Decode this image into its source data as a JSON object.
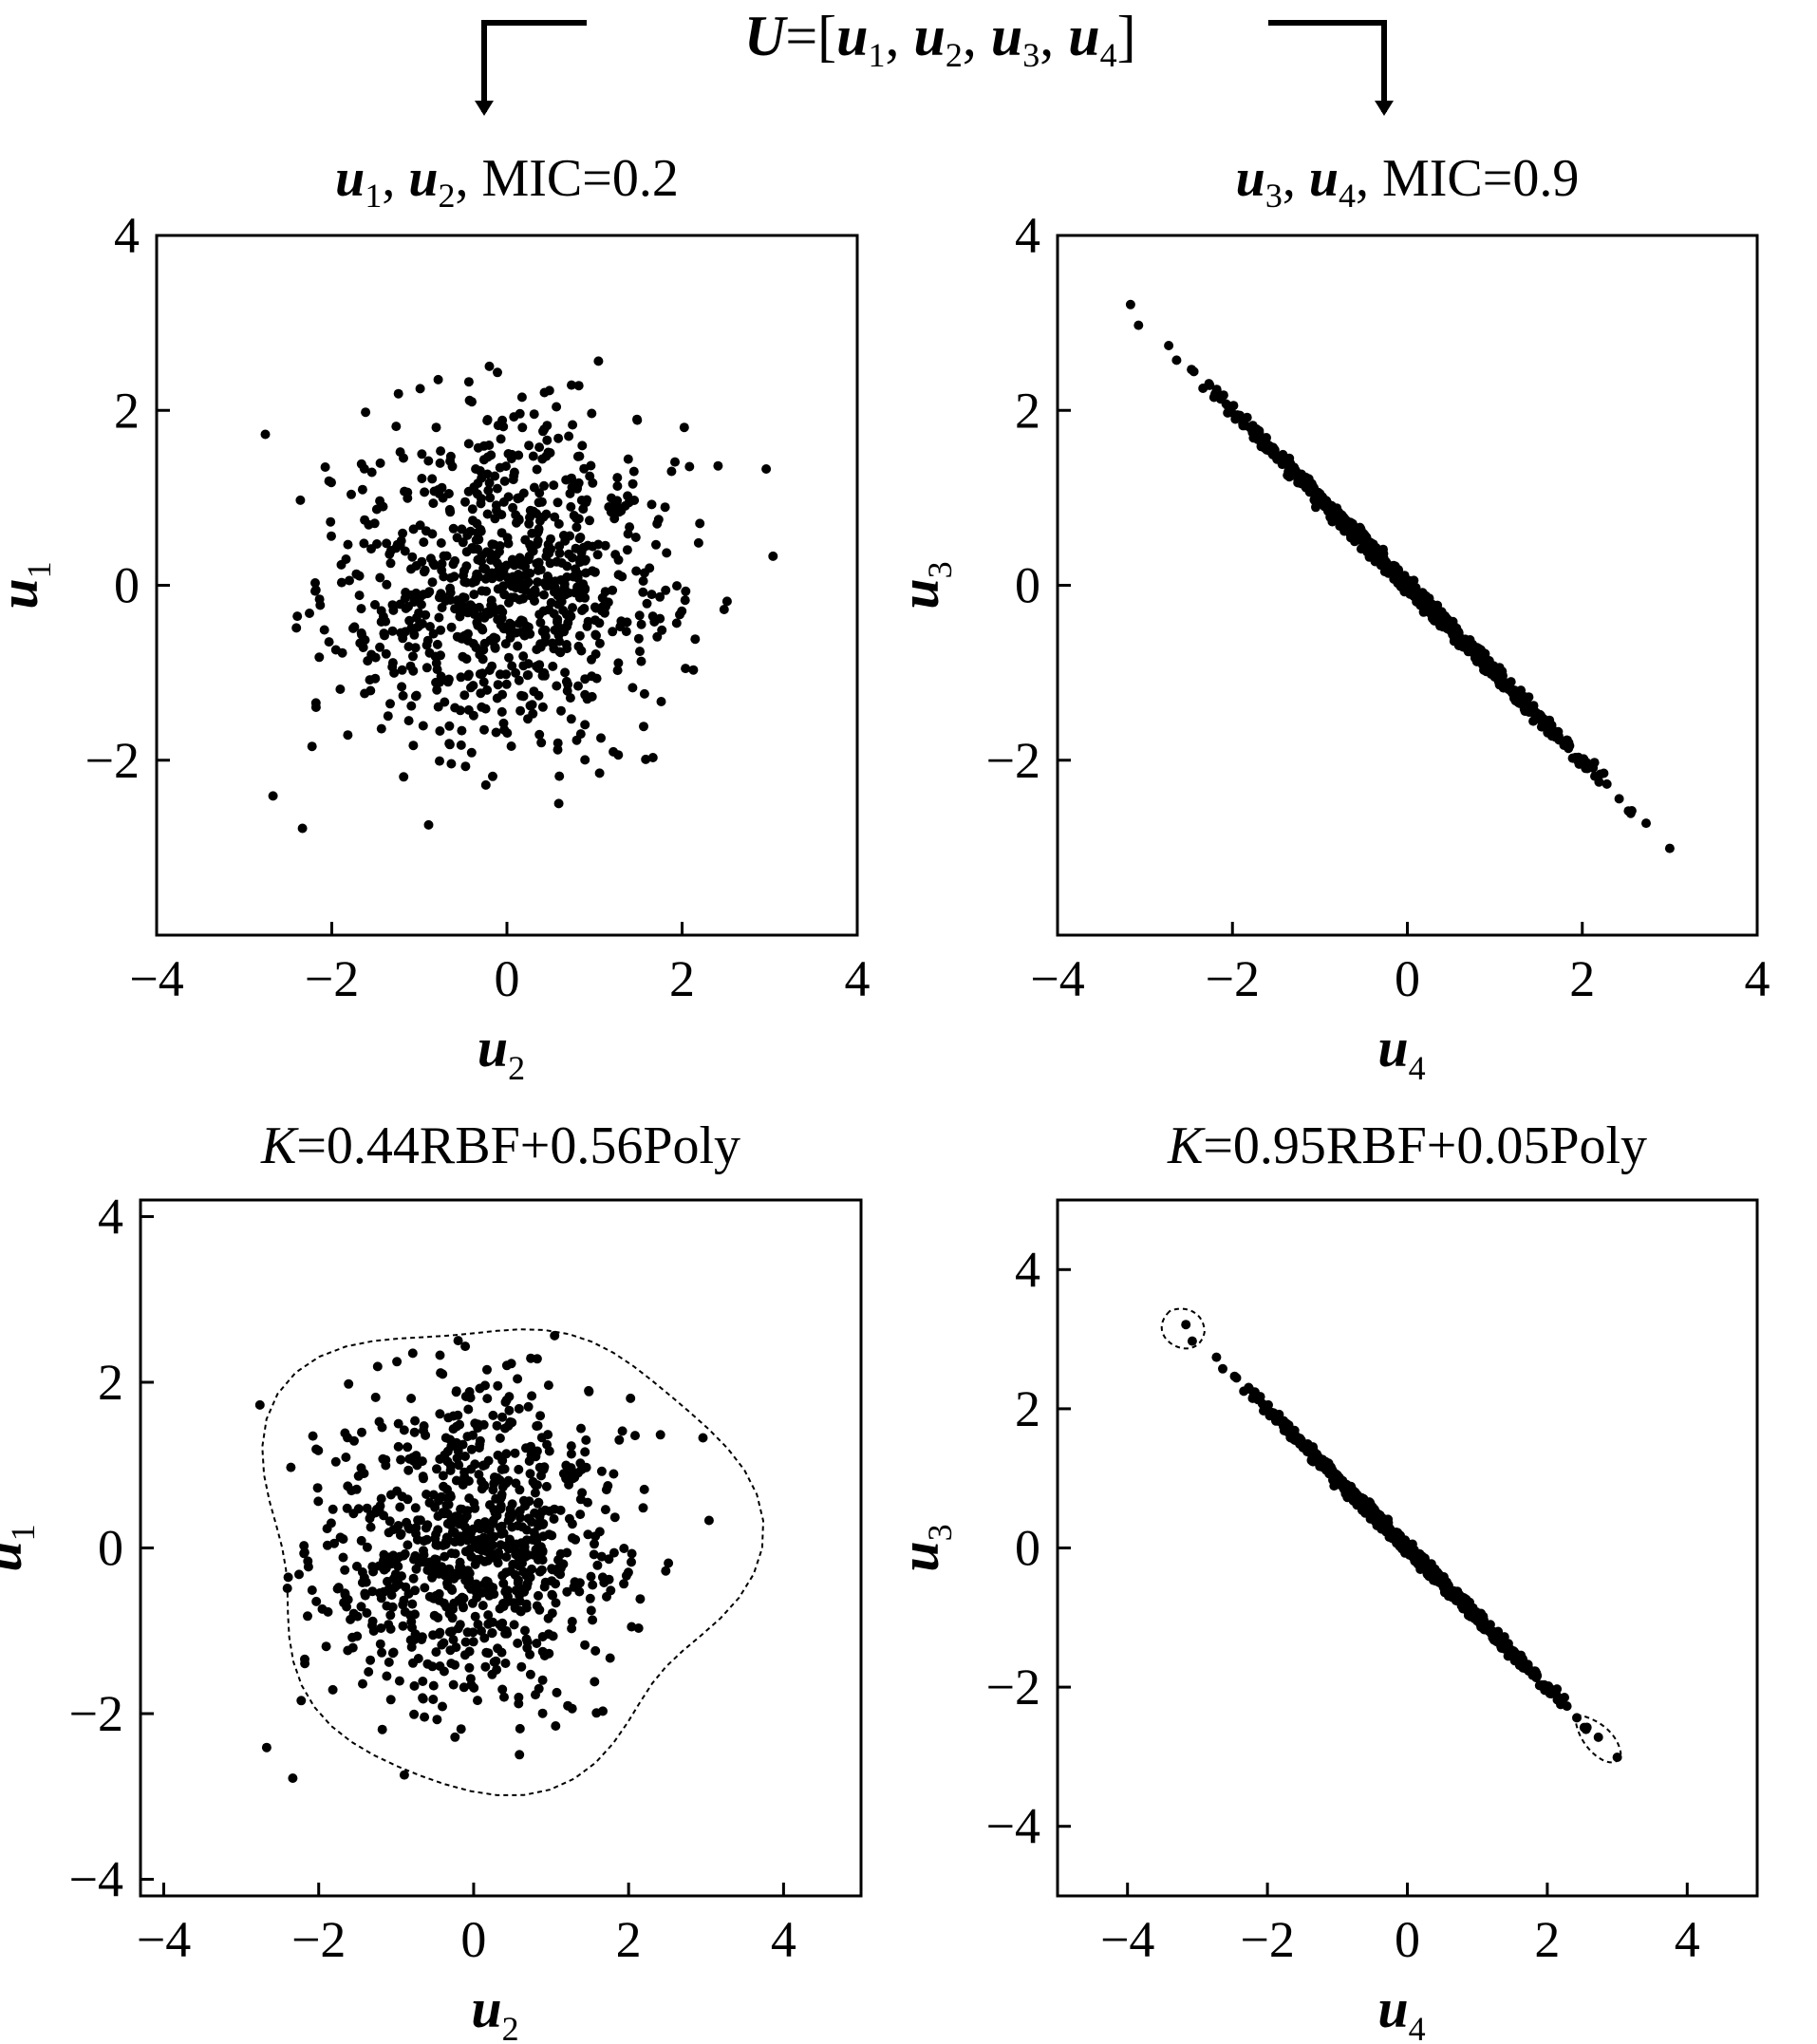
{
  "header": {
    "title_main": "U",
    "title_eq": "=[",
    "title_vars": [
      {
        "name": "u",
        "sub": "1"
      },
      {
        "name": "u",
        "sub": "2"
      },
      {
        "name": "u",
        "sub": "3"
      },
      {
        "name": "u",
        "sub": "4"
      }
    ],
    "title_close": "]"
  },
  "chart_data": [
    {
      "type": "scatter",
      "title": {
        "vars": [
          {
            "name": "u",
            "sub": "1"
          },
          {
            "name": "u",
            "sub": "2"
          }
        ],
        "suffix": "MIC=0.2"
      },
      "xlabel": {
        "name": "u",
        "sub": "2"
      },
      "ylabel": {
        "name": "u",
        "sub": "1"
      },
      "xlim": [
        -4,
        4
      ],
      "ylim": [
        -4,
        4
      ],
      "xticks": [
        "−4",
        "−2",
        "0",
        "2",
        "4"
      ],
      "yticks": [
        "−2",
        "0",
        "2",
        "4"
      ],
      "distribution": {
        "kind": "isotropic-gaussian",
        "n": 850,
        "sigma_x": 1.0,
        "sigma_y": 1.0,
        "clip_x": [
          -2.8,
          3.5
        ],
        "clip_y": [
          -2.8,
          2.8
        ]
      },
      "boundary": false,
      "grid": false
    },
    {
      "type": "scatter",
      "title": {
        "vars": [
          {
            "name": "u",
            "sub": "3"
          },
          {
            "name": "u",
            "sub": "4"
          }
        ],
        "suffix": "MIC=0.9"
      },
      "xlabel": {
        "name": "u",
        "sub": "4"
      },
      "ylabel": {
        "name": "u",
        "sub": "3"
      },
      "xlim": [
        -4,
        4
      ],
      "ylim": [
        -4,
        4
      ],
      "xticks": [
        "−4",
        "−2",
        "0",
        "2",
        "4"
      ],
      "yticks": [
        "−2",
        "0",
        "2",
        "4"
      ],
      "distribution": {
        "kind": "negative-linear",
        "n": 900,
        "slope": -1.0,
        "noise": 0.045,
        "x_range": [
          -3.4,
          3.0
        ]
      },
      "boundary": false,
      "grid": false
    },
    {
      "type": "scatter",
      "title": {
        "vars": [
          {
            "name": "K",
            "sub": ""
          }
        ],
        "prefix_italic": "K",
        "suffix": "=0.44RBF+0.56Poly"
      },
      "xlabel": {
        "name": "u",
        "sub": "2"
      },
      "ylabel": {
        "name": "u",
        "sub": "1"
      },
      "xlim": [
        -4.3,
        5
      ],
      "ylim": [
        -4.2,
        4.2
      ],
      "xticks": [
        "−4",
        "−2",
        "0",
        "2",
        "4"
      ],
      "yticks": [
        "−4",
        "−2",
        "0",
        "2",
        "4"
      ],
      "distribution": {
        "kind": "isotropic-gaussian",
        "n": 850,
        "sigma_x": 1.0,
        "sigma_y": 1.0,
        "clip_x": [
          -2.8,
          3.5
        ],
        "clip_y": [
          -2.8,
          2.8
        ]
      },
      "boundary": true,
      "grid": false
    },
    {
      "type": "scatter",
      "title": {
        "prefix_italic": "K",
        "suffix": "=0.95RBF+0.05Poly"
      },
      "xlabel": {
        "name": "u",
        "sub": "4"
      },
      "ylabel": {
        "name": "u",
        "sub": "3"
      },
      "xlim": [
        -5,
        5
      ],
      "ylim": [
        -5,
        5
      ],
      "xticks": [
        "−4",
        "−2",
        "0",
        "2",
        "4"
      ],
      "yticks": [
        "−4",
        "−2",
        "0",
        "2",
        "4"
      ],
      "distribution": {
        "kind": "negative-linear",
        "n": 900,
        "slope": -1.0,
        "noise": 0.045,
        "x_range": [
          -3.4,
          3.0
        ]
      },
      "boundary": true,
      "grid": false
    }
  ]
}
